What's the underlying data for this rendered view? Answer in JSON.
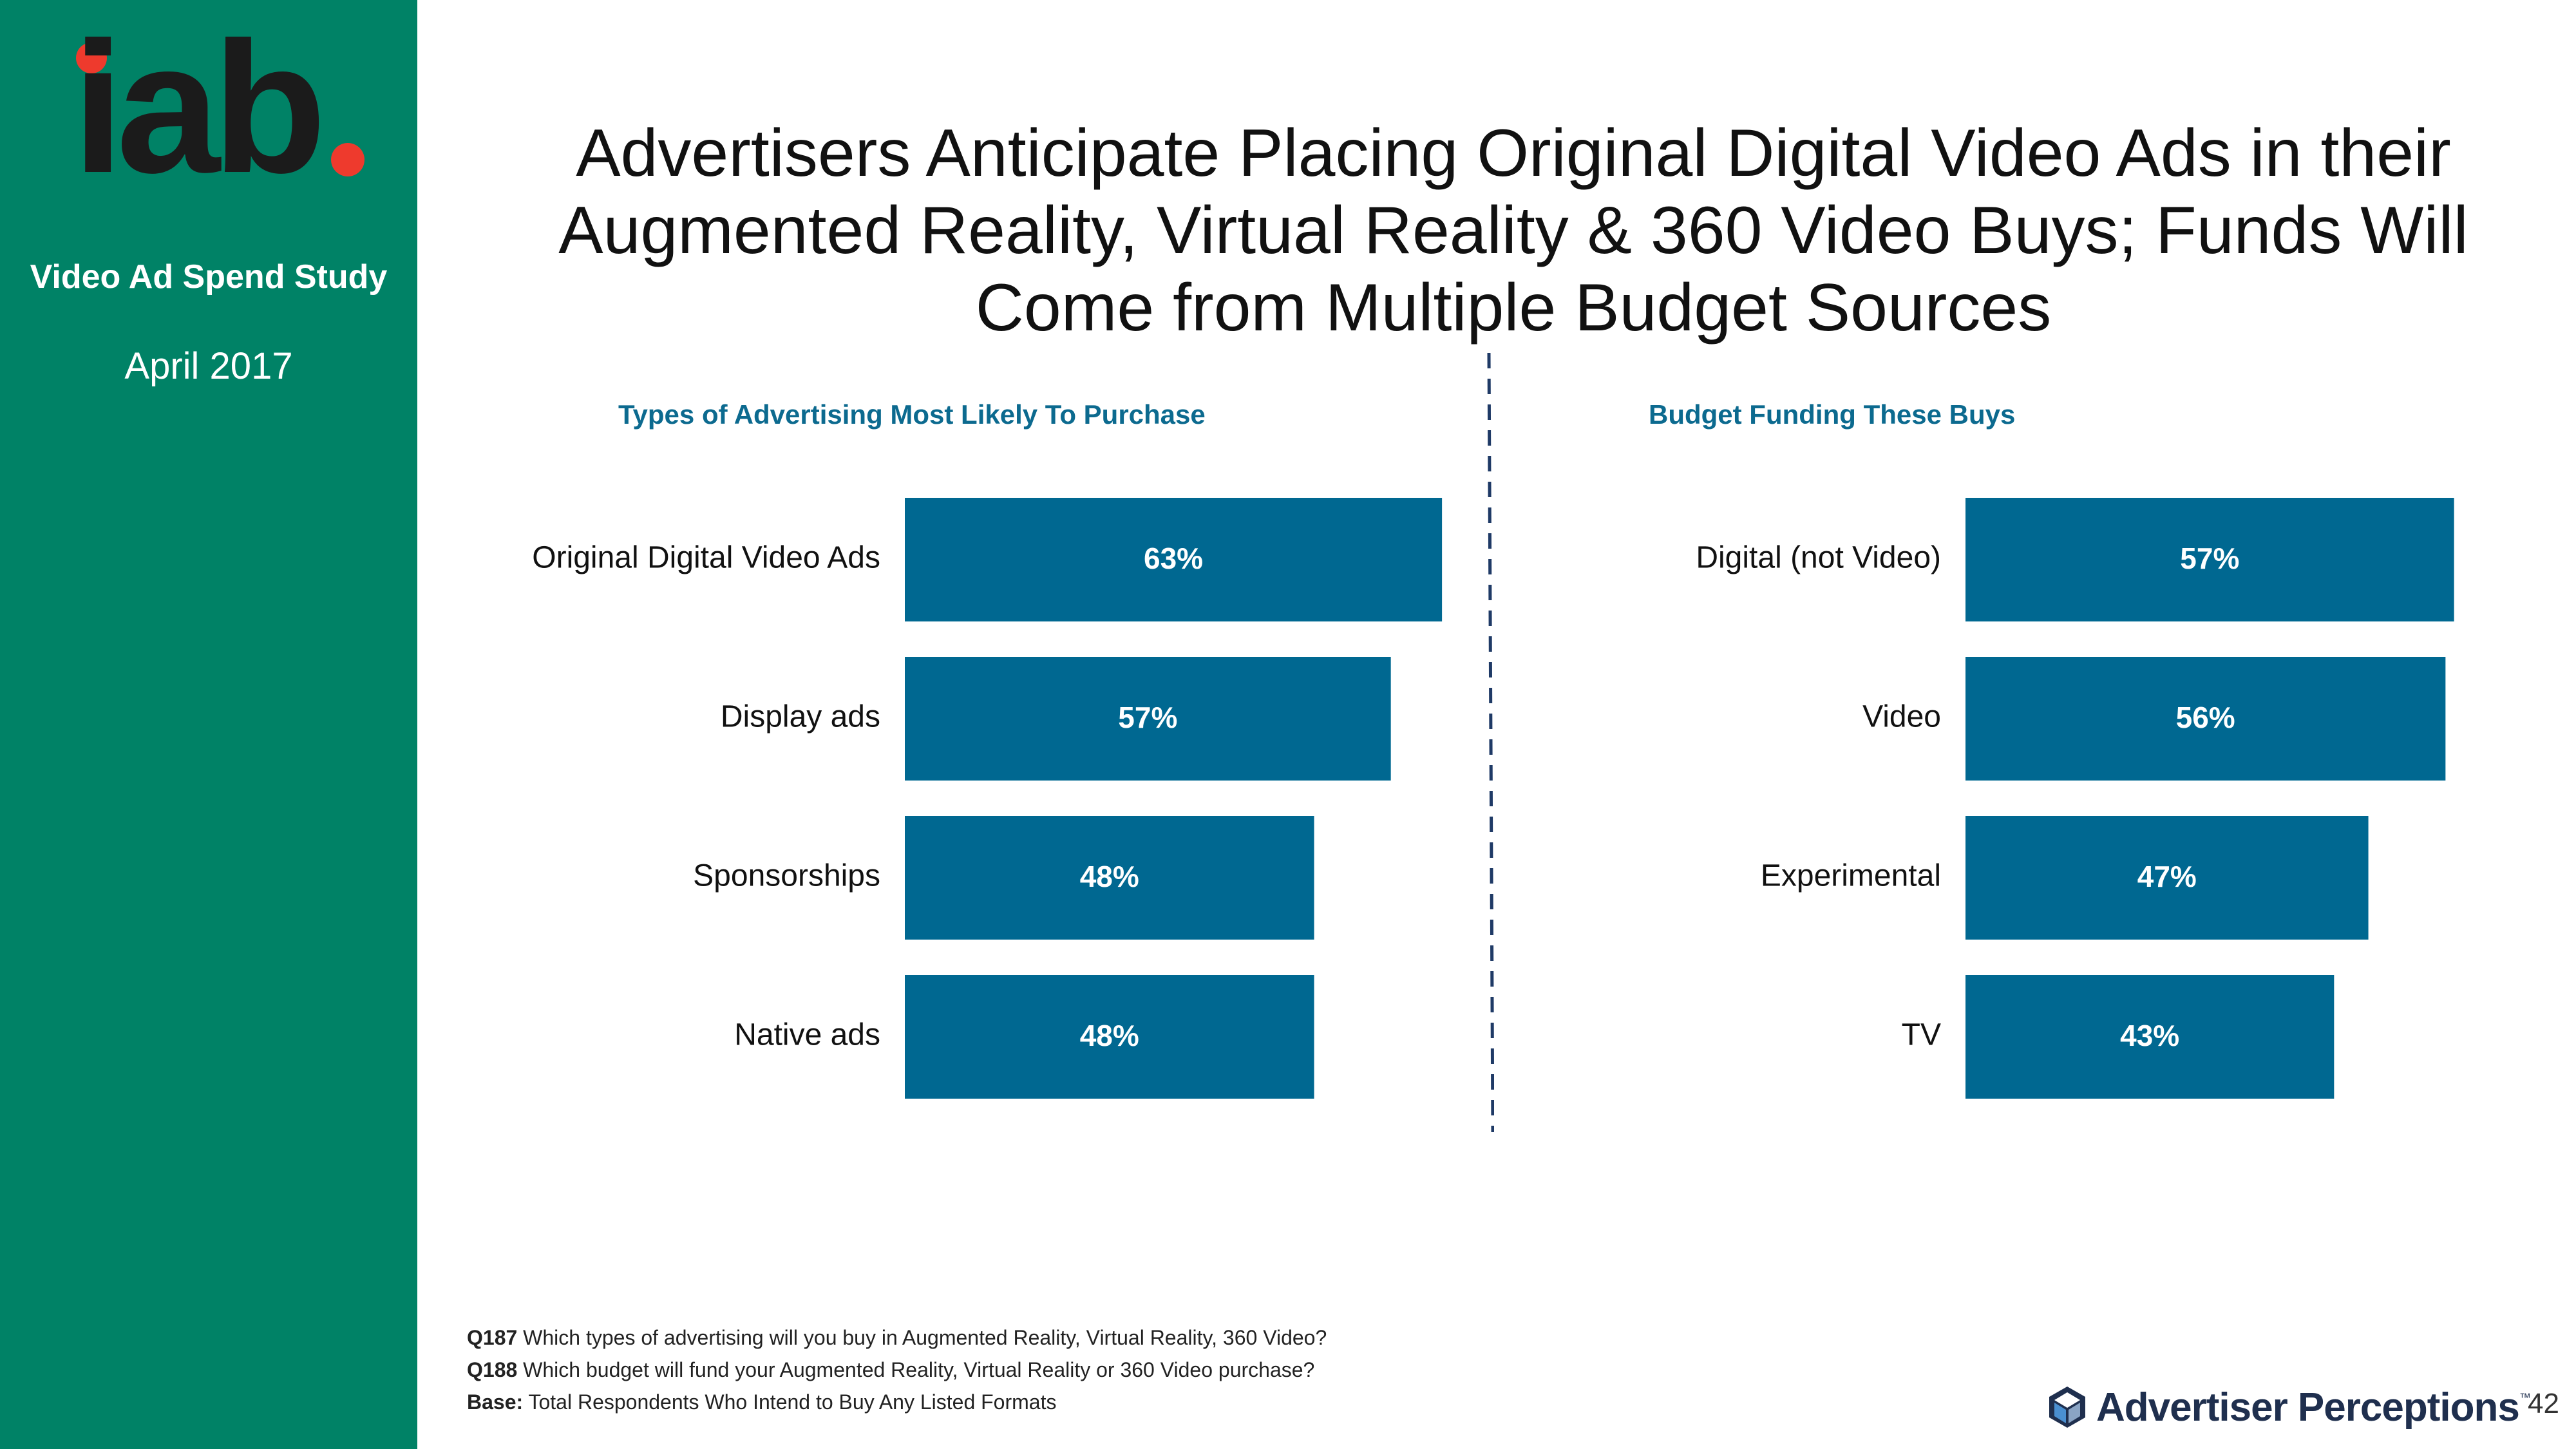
{
  "sidebar": {
    "logo_text": "iab",
    "study_title": "Video Ad Spend Study",
    "date": "April 2017"
  },
  "title": "Advertisers Anticipate Placing Original Digital Video Ads in their Augmented Reality, Virtual Reality & 360 Video Buys; Funds Will Come from Multiple Budget Sources",
  "colors": {
    "sidebar": "#008266",
    "bar": "#006891",
    "subtitle": "#0c6a8f",
    "logo_dot": "#ee3a2d"
  },
  "chart_data": [
    {
      "type": "bar",
      "orientation": "horizontal",
      "title": "Types of Advertising Most Likely To Purchase",
      "categories": [
        "Original Digital Video Ads",
        "Display ads",
        "Sponsorships",
        "Native ads"
      ],
      "values": [
        63,
        57,
        48,
        48
      ],
      "value_labels": [
        "63%",
        "57%",
        "48%",
        "48%"
      ],
      "unit": "%"
    },
    {
      "type": "bar",
      "orientation": "horizontal",
      "title": "Budget Funding These Buys",
      "categories": [
        "Digital (not Video)",
        "Video",
        "Experimental",
        "TV"
      ],
      "values": [
        57,
        56,
        47,
        43
      ],
      "value_labels": [
        "57%",
        "56%",
        "47%",
        "43%"
      ],
      "unit": "%"
    }
  ],
  "footnotes": [
    {
      "key": "Q187",
      "text": "Which types of advertising will you buy in Augmented Reality, Virtual Reality, 360 Video?"
    },
    {
      "key": "Q188",
      "text": "Which budget will fund your Augmented Reality, Virtual Reality or 360 Video purchase?"
    },
    {
      "key": "Base:",
      "text": "Total Respondents Who Intend to Buy Any  Listed Formats"
    }
  ],
  "brand": {
    "name": "Advertiser Perceptions",
    "tm": "™",
    "icon": "cube-icon"
  },
  "page_number": "42"
}
